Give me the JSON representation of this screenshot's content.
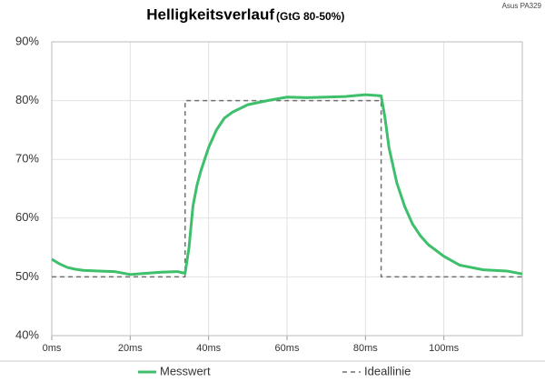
{
  "chart_data": {
    "type": "line",
    "title": "Helligkeitsverlauf",
    "subtitle": "(GtG 80-50%)",
    "note": "Asus PA329",
    "xlim": [
      0,
      120
    ],
    "xticks": [
      {
        "value": 0,
        "label": "0ms"
      },
      {
        "value": 20,
        "label": "20ms"
      },
      {
        "value": 40,
        "label": "40ms"
      },
      {
        "value": 60,
        "label": "60ms"
      },
      {
        "value": 80,
        "label": "80ms"
      },
      {
        "value": 100,
        "label": "100ms"
      }
    ],
    "ylim": [
      40,
      90
    ],
    "yticks": [
      {
        "value": 40,
        "label": "40%"
      },
      {
        "value": 50,
        "label": "50%"
      },
      {
        "value": 60,
        "label": "60%"
      },
      {
        "value": 70,
        "label": "70%"
      },
      {
        "value": 80,
        "label": "80%"
      },
      {
        "value": 90,
        "label": "90%"
      }
    ],
    "grid": true,
    "legend": "bottom",
    "series": [
      {
        "name": "Messwert",
        "color": "#3dbf6b",
        "dashed": false,
        "x": [
          0,
          2,
          4,
          6,
          8,
          12,
          16,
          20,
          24,
          28,
          32,
          34,
          35,
          36,
          37,
          38,
          40,
          42,
          44,
          46,
          50,
          55,
          60,
          65,
          70,
          75,
          80,
          84,
          85,
          86,
          88,
          90,
          92,
          94,
          96,
          100,
          104,
          110,
          116,
          120
        ],
        "values": [
          53,
          52.2,
          51.6,
          51.3,
          51.1,
          51,
          50.9,
          50.4,
          50.6,
          50.8,
          50.9,
          50.6,
          55,
          62,
          65.5,
          68,
          72,
          75,
          77,
          78,
          79.3,
          80,
          80.6,
          80.5,
          80.6,
          80.7,
          81,
          80.8,
          77,
          72,
          66,
          62,
          59,
          57,
          55.5,
          53.5,
          52,
          51.2,
          51,
          50.5
        ]
      },
      {
        "name": "Ideallinie",
        "color": "#707070",
        "dashed": true,
        "x": [
          0,
          34,
          34,
          84,
          84,
          120
        ],
        "values": [
          50,
          50,
          80,
          80,
          50,
          50
        ]
      }
    ]
  }
}
